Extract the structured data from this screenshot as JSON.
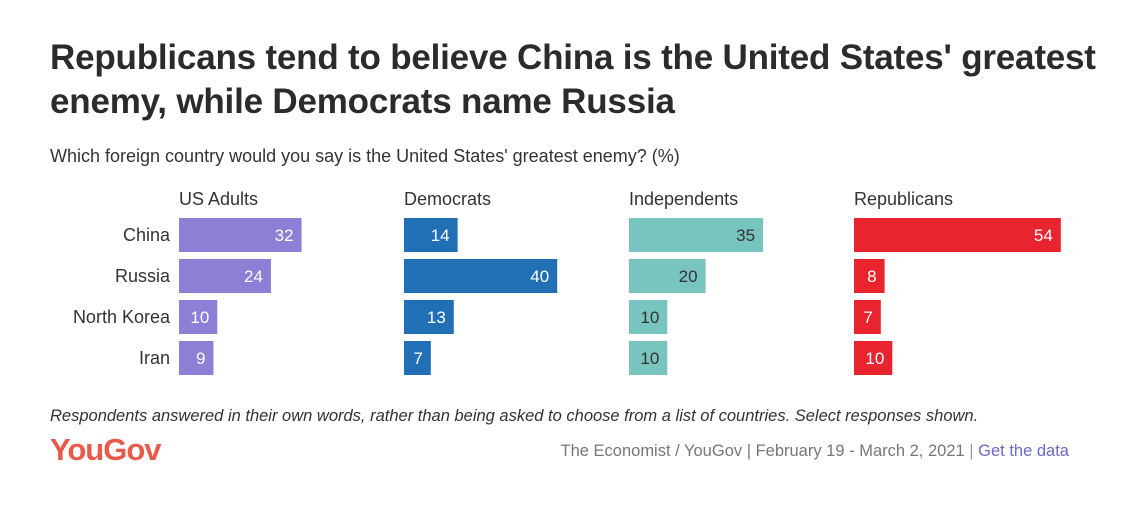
{
  "title": "Republicans tend to believe China is the United States' greatest enemy, while Democrats name Russia",
  "subtitle": "Which foreign country would you say is the United States' greatest enemy? (%)",
  "footnote": "Respondents answered in their own words, rather than being asked to choose from a list of countries. Select responses shown.",
  "logo": "YouGov",
  "source": {
    "text": "The Economist / YouGov | February 19 - March 2, 2021",
    "separator": "|",
    "link_label": "Get the data"
  },
  "chart_data": {
    "type": "bar",
    "orientation": "horizontal",
    "categories": [
      "China",
      "Russia",
      "North Korea",
      "Iran"
    ],
    "series": [
      {
        "name": "US Adults",
        "color": "#8b7fd6",
        "values": [
          32,
          24,
          10,
          9
        ]
      },
      {
        "name": "Democrats",
        "color": "#2170b5",
        "values": [
          14,
          40,
          13,
          7
        ]
      },
      {
        "name": "Independents",
        "color": "#78c4bf",
        "values": [
          35,
          20,
          10,
          10
        ]
      },
      {
        "name": "Republicans",
        "color": "#e8242e",
        "values": [
          54,
          8,
          7,
          10
        ]
      }
    ],
    "label_colors": {
      "inside_light": "#ffffff",
      "inside_dark": "#333333",
      "outside": "#333333"
    },
    "grid": false
  }
}
